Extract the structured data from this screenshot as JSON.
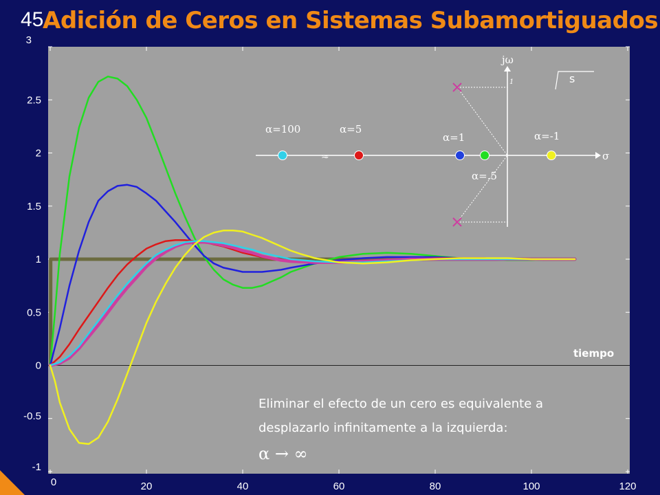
{
  "slide": {
    "number": "45",
    "title": "Adición de Ceros en Sistemas Subamortiguados"
  },
  "colors": {
    "background": "#0c1060",
    "plot_area": "#a0a0a0",
    "title": "#f08a16"
  },
  "chart_data": {
    "type": "line",
    "xlim": [
      0,
      120
    ],
    "ylim": [
      -1,
      3
    ],
    "x_ticks": [
      "0",
      "20",
      "40",
      "60",
      "80",
      "100",
      "120"
    ],
    "y_ticks": [
      "-1",
      "-0.5",
      "0",
      "0.5",
      "1",
      "1.5",
      "2",
      "2.5",
      "3"
    ],
    "xlabel": "tiempo",
    "ylabel": "",
    "title": "",
    "grid": false,
    "series": [
      {
        "color": "#6b6b3f",
        "width": 5,
        "x": [
          0,
          0.1,
          0.1,
          109
        ],
        "y": [
          0,
          0,
          1,
          1
        ]
      },
      {
        "color": "#22dd22",
        "width": 2.5,
        "x": [
          0,
          1,
          2,
          4,
          6,
          8,
          10,
          12,
          14,
          16,
          18,
          20,
          22,
          24,
          26,
          28,
          30,
          32,
          34,
          36,
          38,
          40,
          42,
          44,
          46,
          48,
          50,
          55,
          60,
          65,
          70,
          75,
          80,
          85,
          90,
          95,
          100,
          105,
          109
        ],
        "y": [
          0,
          0.5,
          1.05,
          1.78,
          2.24,
          2.52,
          2.67,
          2.72,
          2.7,
          2.63,
          2.5,
          2.33,
          2.1,
          1.86,
          1.62,
          1.4,
          1.2,
          1.02,
          0.9,
          0.81,
          0.76,
          0.73,
          0.73,
          0.75,
          0.79,
          0.83,
          0.88,
          0.96,
          1.02,
          1.05,
          1.06,
          1.05,
          1.03,
          1.01,
          1.0,
          0.99,
          0.99,
          1.0,
          1.0
        ]
      },
      {
        "color": "#2020dd",
        "width": 2.5,
        "x": [
          0,
          2,
          4,
          6,
          8,
          10,
          12,
          14,
          16,
          18,
          20,
          22,
          24,
          26,
          28,
          30,
          32,
          34,
          36,
          38,
          40,
          42,
          44,
          46,
          48,
          50,
          55,
          60,
          65,
          70,
          75,
          80,
          85,
          90,
          95,
          100,
          105,
          109
        ],
        "y": [
          0,
          0.35,
          0.75,
          1.08,
          1.35,
          1.55,
          1.64,
          1.69,
          1.7,
          1.68,
          1.62,
          1.55,
          1.45,
          1.35,
          1.24,
          1.13,
          1.03,
          0.96,
          0.92,
          0.9,
          0.88,
          0.88,
          0.88,
          0.89,
          0.9,
          0.92,
          0.96,
          0.99,
          1.01,
          1.02,
          1.02,
          1.02,
          1.01,
          1.0,
          1.0,
          1.0,
          1.0,
          1.0
        ]
      },
      {
        "color": "#dd1818",
        "width": 2.5,
        "x": [
          0,
          2,
          4,
          6,
          8,
          10,
          12,
          14,
          16,
          18,
          20,
          22,
          24,
          26,
          28,
          30,
          32,
          34,
          36,
          38,
          40,
          42,
          44,
          46,
          48,
          50,
          55,
          60,
          65,
          70,
          75,
          80,
          85,
          90,
          95,
          100,
          105,
          109
        ],
        "y": [
          0,
          0.08,
          0.2,
          0.34,
          0.47,
          0.6,
          0.73,
          0.85,
          0.95,
          1.03,
          1.1,
          1.14,
          1.17,
          1.18,
          1.18,
          1.17,
          1.16,
          1.14,
          1.12,
          1.09,
          1.06,
          1.04,
          1.02,
          1.0,
          0.99,
          0.98,
          0.97,
          0.97,
          0.98,
          0.99,
          1.0,
          1.01,
          1.01,
          1.01,
          1.0,
          1.0,
          1.0,
          1.0
        ]
      },
      {
        "color": "#cc3f9f",
        "width": 4.5,
        "x": [
          0,
          2,
          4,
          6,
          8,
          10,
          12,
          14,
          16,
          18,
          20,
          22,
          24,
          26,
          28,
          30,
          32,
          34,
          36,
          38,
          40,
          42,
          44,
          46,
          48,
          50,
          55,
          60,
          65,
          70,
          75,
          80,
          85,
          90,
          95,
          100,
          105,
          109
        ],
        "y": [
          0,
          0.02,
          0.07,
          0.16,
          0.27,
          0.38,
          0.5,
          0.62,
          0.73,
          0.83,
          0.93,
          1.01,
          1.07,
          1.12,
          1.15,
          1.16,
          1.16,
          1.15,
          1.13,
          1.11,
          1.08,
          1.06,
          1.03,
          1.01,
          0.99,
          0.98,
          0.97,
          0.97,
          0.98,
          0.99,
          1.0,
          1.0,
          1.0,
          1.0,
          1.0,
          1.0,
          1.0,
          1.0
        ]
      },
      {
        "color": "#30d0e8",
        "width": 2.5,
        "x": [
          0,
          2,
          4,
          6,
          8,
          10,
          12,
          14,
          16,
          18,
          20,
          22,
          24,
          26,
          28,
          30,
          32,
          34,
          36,
          38,
          40,
          42,
          44,
          46,
          48,
          50,
          55,
          60,
          65,
          70,
          75,
          80,
          85,
          90,
          95,
          100,
          105,
          109
        ],
        "y": [
          0,
          0.03,
          0.09,
          0.18,
          0.3,
          0.42,
          0.54,
          0.66,
          0.77,
          0.87,
          0.96,
          1.04,
          1.09,
          1.13,
          1.16,
          1.17,
          1.17,
          1.16,
          1.15,
          1.13,
          1.11,
          1.09,
          1.06,
          1.04,
          1.02,
          1.0,
          0.98,
          0.97,
          0.97,
          0.98,
          0.99,
          1.0,
          1.0,
          1.0,
          1.0,
          1.0,
          1.0,
          1.0
        ]
      },
      {
        "color": "#f0f020",
        "width": 2.5,
        "x": [
          0,
          1,
          2,
          4,
          6,
          8,
          10,
          12,
          14,
          16,
          18,
          20,
          22,
          24,
          26,
          28,
          30,
          32,
          34,
          36,
          38,
          40,
          42,
          44,
          46,
          48,
          50,
          52,
          55,
          60,
          65,
          70,
          75,
          80,
          85,
          90,
          95,
          100,
          105,
          109
        ],
        "y": [
          0,
          -0.15,
          -0.35,
          -0.6,
          -0.73,
          -0.74,
          -0.68,
          -0.53,
          -0.32,
          -0.08,
          0.16,
          0.4,
          0.6,
          0.77,
          0.92,
          1.04,
          1.14,
          1.21,
          1.25,
          1.27,
          1.27,
          1.26,
          1.23,
          1.2,
          1.16,
          1.12,
          1.08,
          1.05,
          1.01,
          0.97,
          0.96,
          0.97,
          0.99,
          1.0,
          1.01,
          1.01,
          1.01,
          1.0,
          1.0,
          1.0
        ]
      }
    ]
  },
  "pole_zero_plot": {
    "imag_axis_label": "jω",
    "real_axis_label": "σ",
    "imag_tick_label": "1",
    "plane_label": "s",
    "poles": [
      {
        "color": "#cc3f9f",
        "part": "upper"
      },
      {
        "color": "#cc3f9f",
        "part": "lower"
      }
    ],
    "zeros": [
      {
        "label": "α=100",
        "color": "#30d0e8"
      },
      {
        "label": "α=5",
        "color": "#dd1818"
      },
      {
        "label": "α=1",
        "color": "#2040dd"
      },
      {
        "label": "α=.5",
        "color": "#22dd22"
      },
      {
        "label": "α=-1",
        "color": "#f0f020"
      }
    ],
    "break_mark": "≈"
  },
  "annotation": {
    "line1": "Eliminar el efecto de un cero es equivalente a",
    "line2": "desplazarlo infinitamente a la izquierda:",
    "line3": "α → ∞"
  }
}
